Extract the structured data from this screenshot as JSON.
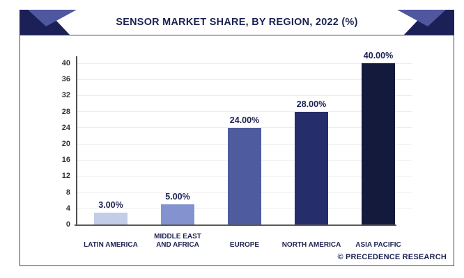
{
  "header": {
    "title": "SENSOR MARKET SHARE, BY REGION, 2022 (%)"
  },
  "footer": {
    "credit": "© PRECEDENCE RESEARCH"
  },
  "colors": {
    "ribbon_navy": "#1b2156",
    "ribbon_purple": "#4f579f",
    "title_text": "#1c2252",
    "axis_line": "#4d4d4d",
    "gridline": "#ededed",
    "tick_text": "#333333"
  },
  "chart_data": {
    "type": "bar",
    "title": "SENSOR MARKET SHARE, BY REGION, 2022 (%)",
    "categories": [
      "LATIN AMERICA",
      "MIDDLE EAST AND AFRICA",
      "EUROPE",
      "NORTH AMERICA",
      "ASIA PACIFIC"
    ],
    "category_lines": [
      [
        "LATIN AMERICA"
      ],
      [
        "MIDDLE EAST",
        "AND AFRICA"
      ],
      [
        "EUROPE"
      ],
      [
        "NORTH AMERICA"
      ],
      [
        "ASIA PACIFIC"
      ]
    ],
    "values": [
      3,
      5,
      24,
      28,
      40
    ],
    "value_labels": [
      "3.00%",
      "5.00%",
      "24.00%",
      "28.00%",
      "40.00%"
    ],
    "bar_colors": [
      "#c3cce9",
      "#8492cf",
      "#4e5b9e",
      "#262d6b",
      "#131a3c"
    ],
    "xlabel": "",
    "ylabel": "",
    "ylim": [
      0,
      40
    ],
    "yticks": [
      0,
      4,
      8,
      12,
      16,
      20,
      24,
      28,
      32,
      36,
      40
    ],
    "grid": true,
    "legend": "none"
  }
}
